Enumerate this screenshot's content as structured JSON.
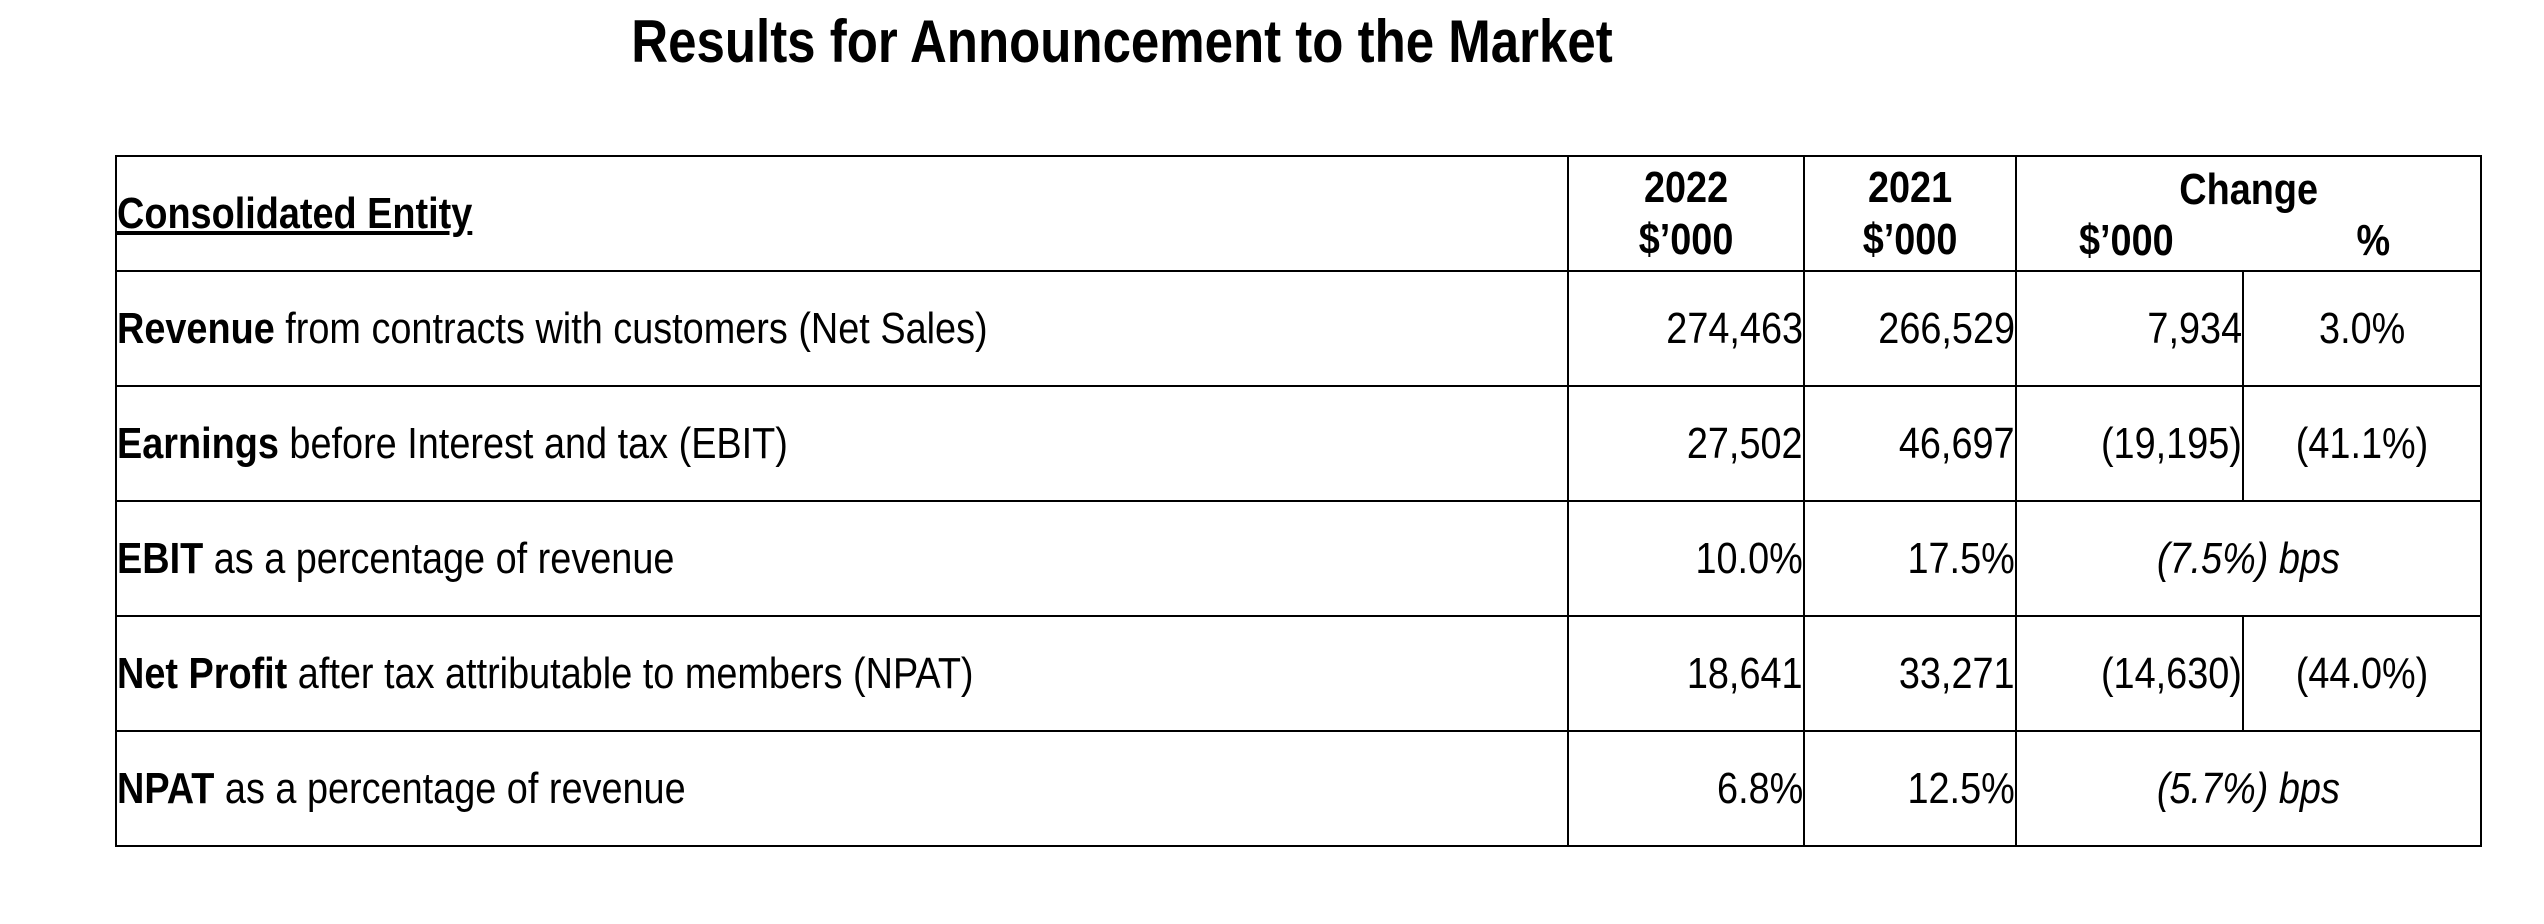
{
  "title": "Results for Announcement to the Market",
  "table": {
    "entity_header": "Consolidated Entity",
    "col_2022": {
      "year": "2022",
      "unit": "$’000"
    },
    "col_2021": {
      "year": "2021",
      "unit": "$’000"
    },
    "change": {
      "title": "Change",
      "dollar_unit": "$’000",
      "pct_unit": "%"
    },
    "rows": [
      {
        "bold": "Revenue",
        "rest": " from contracts with customers (Net Sales)",
        "v2022": "274,463",
        "v2021": "266,529",
        "change_dollar": "7,934",
        "change_pct": "3.0%"
      },
      {
        "bold": "Earnings",
        "rest": " before Interest and tax (EBIT)",
        "v2022": "27,502",
        "v2021": "46,697",
        "change_dollar": "(19,195)",
        "change_pct": "(41.1%)"
      },
      {
        "bold": "EBIT",
        "rest": " as a percentage of revenue",
        "v2022": "10.0%",
        "v2021": "17.5%",
        "change_bps": "(7.5%) bps"
      },
      {
        "bold": "Net Profit",
        "rest": " after tax attributable to members (NPAT)",
        "v2022": "18,641",
        "v2021": "33,271",
        "change_dollar": "(14,630)",
        "change_pct": "(44.0%)"
      },
      {
        "bold": "NPAT",
        "rest": " as a percentage of revenue",
        "v2022": "6.8%",
        "v2021": "12.5%",
        "change_bps": "(5.7%) bps"
      }
    ]
  }
}
